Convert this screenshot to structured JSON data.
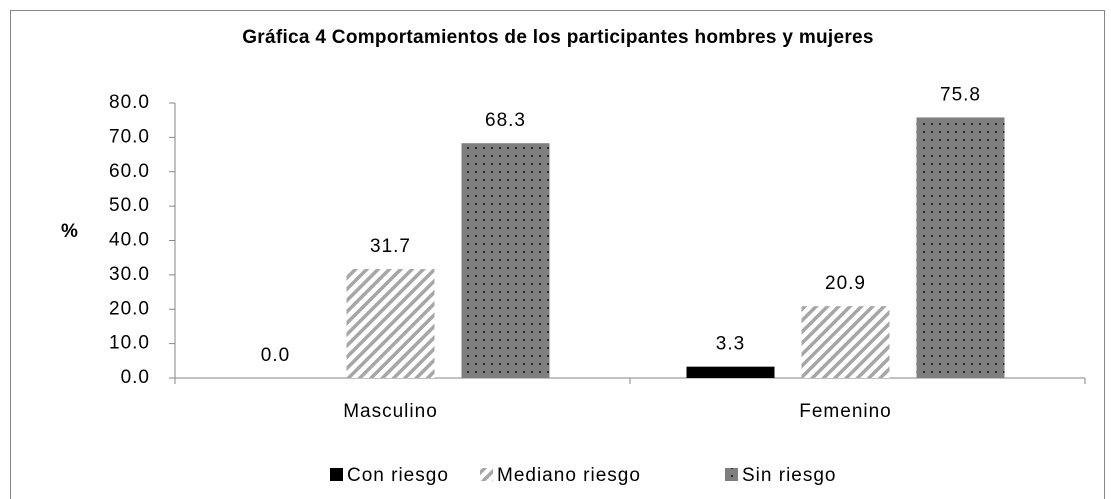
{
  "chart_data": {
    "type": "bar",
    "title": "Gráfica 4 Comportamientos de los participantes hombres y mujeres",
    "ylabel": "%",
    "categories": [
      "Masculino",
      "Femenino"
    ],
    "series": [
      {
        "name": "Con riesgo",
        "color": "#000000",
        "pattern": "solid",
        "values": [
          0.0,
          3.3
        ],
        "value_labels": [
          "0.0",
          "3.3"
        ]
      },
      {
        "name": "Mediano riesgo",
        "color": "#a6a6a6",
        "pattern": "hatch",
        "values": [
          31.7,
          20.9
        ],
        "value_labels": [
          "31.7",
          "20.9"
        ]
      },
      {
        "name": "Sin riesgo",
        "color": "#7f7f7f",
        "pattern": "dots",
        "values": [
          68.3,
          75.8
        ],
        "value_labels": [
          "68.3",
          "75.8"
        ]
      }
    ],
    "ylim": [
      0,
      80
    ],
    "yticks": [
      {
        "value": 0,
        "label": "0.0"
      },
      {
        "value": 10,
        "label": "10.0"
      },
      {
        "value": 20,
        "label": "20.0"
      },
      {
        "value": 30,
        "label": "30.0"
      },
      {
        "value": 40,
        "label": "40.0"
      },
      {
        "value": 50,
        "label": "50.0"
      },
      {
        "value": 60,
        "label": "60.0"
      },
      {
        "value": 70,
        "label": "70.0"
      },
      {
        "value": 80,
        "label": "80.0"
      }
    ],
    "grid": false,
    "legend": "bottom"
  }
}
